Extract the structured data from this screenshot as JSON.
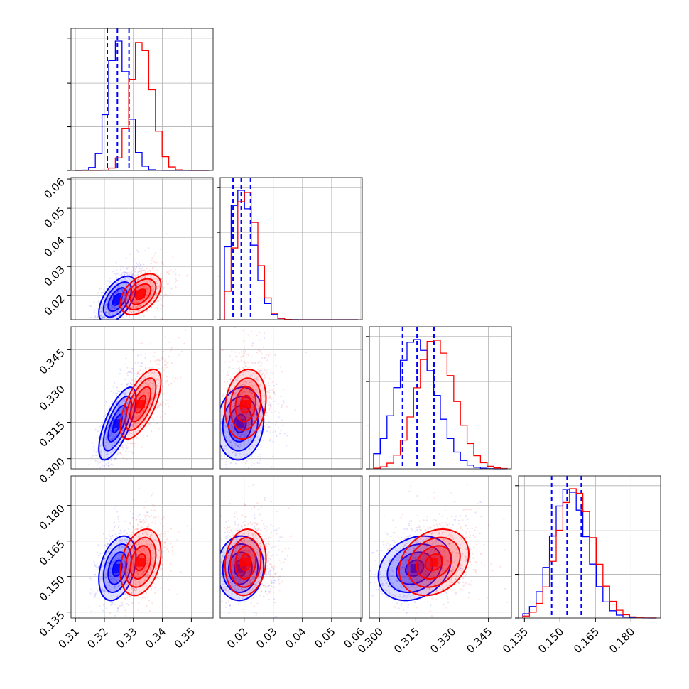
{
  "chart_data": {
    "type": "corner",
    "series": [
      {
        "name": "",
        "color": "#0000ff",
        "means": [
          0.3245,
          0.0187,
          0.3145,
          0.1535
        ],
        "sigmas": [
          0.0032,
          0.004,
          0.0075,
          0.0068
        ],
        "corr": [
          [
            0,
            1,
            0.55
          ],
          [
            0,
            2,
            0.7
          ],
          [
            0,
            3,
            0.35
          ],
          [
            1,
            2,
            0.1
          ],
          [
            1,
            3,
            0.05
          ],
          [
            2,
            3,
            0.25
          ]
        ],
        "quantiles": [
          [
            0.321,
            0.3245,
            0.3285
          ],
          [
            0.0162,
            0.019,
            0.0222
          ],
          [
            0.3095,
            0.3155,
            0.3225
          ],
          [
            0.1465,
            0.153,
            0.159
          ]
        ]
      },
      {
        "name": "",
        "color": "#ff0000",
        "means": [
          0.3325,
          0.0205,
          0.3225,
          0.156
        ],
        "sigmas": [
          0.0035,
          0.0035,
          0.0072,
          0.007
        ],
        "corr": [
          [
            0,
            1,
            0.45
          ],
          [
            0,
            2,
            0.65
          ],
          [
            0,
            3,
            0.3
          ],
          [
            1,
            2,
            0.15
          ],
          [
            1,
            3,
            0.1
          ],
          [
            2,
            3,
            0.25
          ]
        ],
        "quantiles": [
          [],
          [],
          [],
          []
        ]
      }
    ],
    "ranges": [
      [
        0.3085,
        0.3575
      ],
      [
        0.0118,
        0.0605
      ],
      [
        0.2958,
        0.3545
      ],
      [
        0.1325,
        0.1925
      ]
    ],
    "tick_values": [
      [
        0.31,
        0.32,
        0.33,
        0.34,
        0.35
      ],
      [
        0.02,
        0.03,
        0.04,
        0.05,
        0.06
      ],
      [
        0.3,
        0.315,
        0.33,
        0.345
      ],
      [
        0.135,
        0.15,
        0.165,
        0.18
      ]
    ],
    "tick_labels": [
      [
        "0.31",
        "0.32",
        "0.33",
        "0.34",
        "0.35"
      ],
      [
        "0.02",
        "0.03",
        "0.04",
        "0.05",
        "0.06"
      ],
      [
        "0.300",
        "0.315",
        "0.330",
        "0.345"
      ],
      [
        "0.135",
        "0.150",
        "0.165",
        "0.180"
      ]
    ],
    "histogram_peaks": [
      {
        "blue_max": 0.3245,
        "red_max": 0.333
      },
      {
        "blue_max": 0.0188,
        "red_max": 0.0201
      },
      {
        "blue_max": 0.3165,
        "red_max": 0.323
      },
      {
        "blue_max": 0.153,
        "red_max": 0.1565
      }
    ],
    "grid": true,
    "legend": "none",
    "contour_levels_sigma": [
      0.5,
      1.0,
      1.5,
      2.0
    ]
  }
}
